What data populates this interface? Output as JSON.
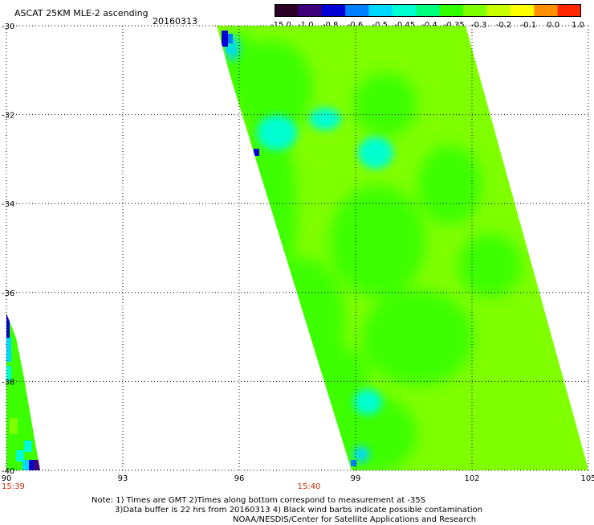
{
  "header": {
    "title": "ASCAT 25KM MLE-2 ascending",
    "date": "20160313"
  },
  "colorbar": {
    "labels": [
      "-15.0",
      "-1.0",
      "-0.8",
      "-0.6",
      "-0.5",
      "-0.45",
      "-0.4",
      "-0.35",
      "-0.3",
      "-0.2",
      "-0.1",
      "0.0",
      "1.0"
    ],
    "colors": [
      "#2a0025",
      "#3d007a",
      "#0000d6",
      "#0080ff",
      "#00d8ff",
      "#00ffd0",
      "#00ff80",
      "#30ff00",
      "#80ff00",
      "#c8ff00",
      "#ffff00",
      "#ff9000",
      "#ff2800"
    ]
  },
  "map": {
    "lon_ticks": [
      "90",
      "93",
      "96",
      "99",
      "102",
      "105"
    ],
    "lat_ticks": [
      "-30",
      "-32",
      "-34",
      "-36",
      "-38",
      "-40"
    ],
    "time_labels": [
      {
        "text": "15:39",
        "lon": 90
      },
      {
        "text": "15:40",
        "lon": 97.5
      }
    ],
    "grid": true,
    "swath_colors": {
      "dominant": "#80ff00",
      "secondary": "#3cff00",
      "cyan": "#00ffd0",
      "light_blue": "#00d8ff",
      "blue": "#0080ff",
      "deep_blue": "#0000d6",
      "purple": "#3d007a"
    }
  },
  "notes": {
    "line1": "Note: 1) Times are GMT 2)Times along bottom correspond to measurement at -35S",
    "line2": "3)Data buffer is 22 hrs from 20160313 4) Black wind barbs indicate possible contamination",
    "line3": "NOAA/NESDIS/Center for Satellite Applications and Research"
  }
}
